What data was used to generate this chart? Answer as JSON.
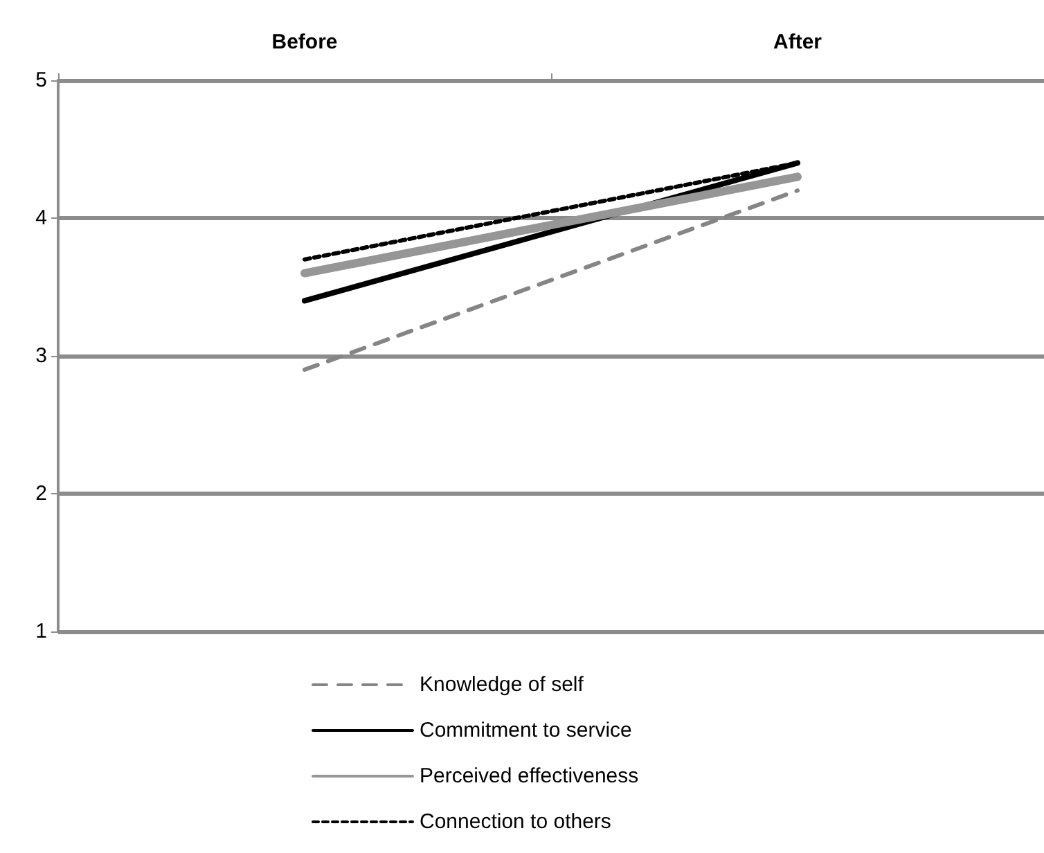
{
  "chart_data": {
    "type": "line",
    "categories": [
      "Before",
      "After"
    ],
    "series": [
      {
        "name": "Knowledge of self",
        "color": "#858585",
        "values": [
          2.9,
          4.2
        ],
        "line_style": "dashed"
      },
      {
        "name": "Commitment to service",
        "color": "#000000",
        "values": [
          3.4,
          4.4
        ],
        "line_style": "solid"
      },
      {
        "name": "Perceived effectiveness",
        "color": "#969696",
        "values": [
          3.6,
          4.3
        ],
        "line_style": "solid"
      },
      {
        "name": "Connection to others",
        "color": "#000000",
        "values": [
          3.7,
          4.4
        ],
        "line_style": "dotted"
      }
    ],
    "ylim": [
      1,
      5
    ],
    "yticks": [
      1,
      2,
      3,
      4,
      5
    ],
    "grid": "y",
    "legend": "bottom",
    "marker": "none"
  }
}
